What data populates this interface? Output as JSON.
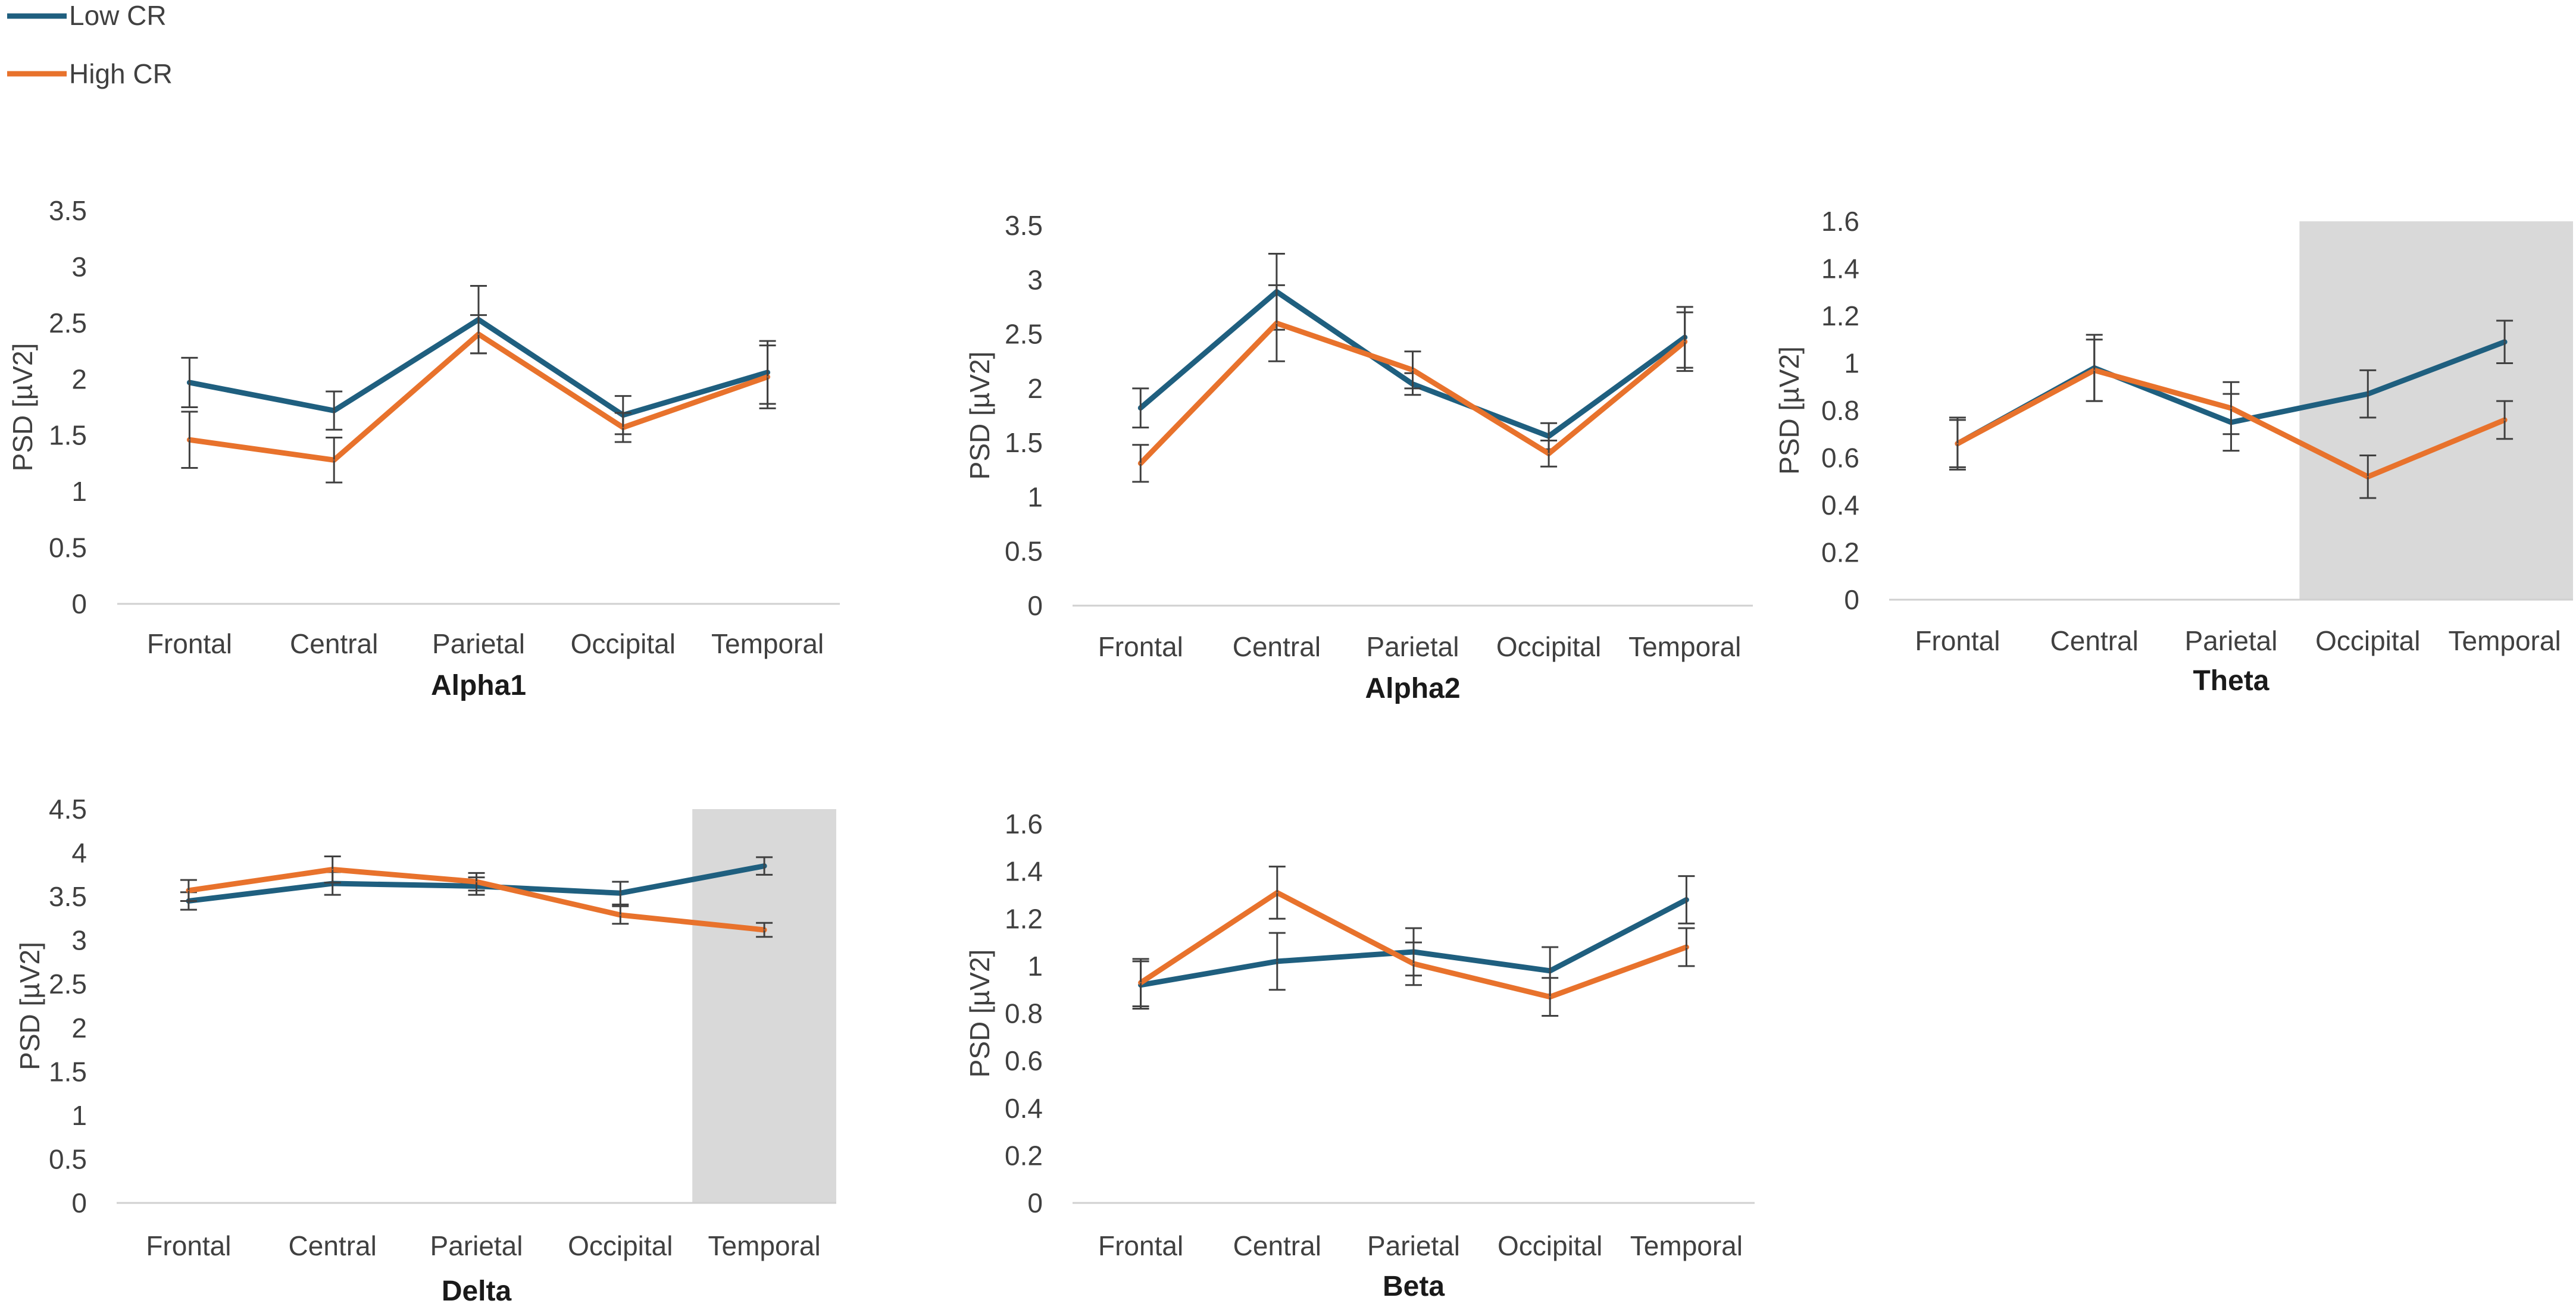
{
  "colors": {
    "low_cr": "#1f5f7f",
    "high_cr": "#e8722c",
    "highlight": "#d9d9d9",
    "axis": "#d0d0d0",
    "text": "#404040",
    "errorbar": "#404040"
  },
  "legend": {
    "items": [
      {
        "label": "Low CR",
        "color": "#1f5f7f"
      },
      {
        "label": "High CR",
        "color": "#e8722c"
      }
    ]
  },
  "chart_data": [
    {
      "type": "line",
      "title": "Alpha1",
      "ylabel": "PSD [µV2]",
      "categories": [
        "Frontal",
        "Central",
        "Parietal",
        "Occipital",
        "Temporal"
      ],
      "ylim": [
        0,
        3.5
      ],
      "yticks": [
        "0",
        "0.5",
        "1",
        "1.5",
        "2",
        "2.5",
        "3",
        "3.5"
      ],
      "highlight": null,
      "series": [
        {
          "name": "Low CR",
          "values": [
            1.97,
            1.72,
            2.53,
            1.68,
            2.06
          ],
          "errors": [
            0.22,
            0.17,
            0.3,
            0.17,
            0.28
          ]
        },
        {
          "name": "High CR",
          "values": [
            1.46,
            1.28,
            2.4,
            1.57,
            2.02
          ],
          "errors": [
            0.25,
            0.2,
            0.17,
            0.13,
            0.28
          ]
        }
      ]
    },
    {
      "type": "line",
      "title": "Alpha2",
      "ylabel": "PSD [µV2]",
      "categories": [
        "Frontal",
        "Central",
        "Parietal",
        "Occipital",
        "Temporal"
      ],
      "ylim": [
        0,
        3.5
      ],
      "yticks": [
        "0",
        "0.5",
        "1",
        "1.5",
        "2",
        "2.5",
        "3",
        "3.5"
      ],
      "highlight": null,
      "series": [
        {
          "name": "Low CR",
          "values": [
            1.82,
            2.89,
            2.04,
            1.56,
            2.47
          ],
          "errors": [
            0.18,
            0.35,
            0.1,
            0.12,
            0.28
          ]
        },
        {
          "name": "High CR",
          "values": [
            1.31,
            2.6,
            2.17,
            1.4,
            2.43
          ],
          "errors": [
            0.17,
            0.35,
            0.17,
            0.12,
            0.27
          ]
        }
      ]
    },
    {
      "type": "line",
      "title": "Theta",
      "ylabel": "PSD [µV2]",
      "categories": [
        "Frontal",
        "Central",
        "Parietal",
        "Occipital",
        "Temporal"
      ],
      "ylim": [
        0,
        1.6
      ],
      "yticks": [
        "0",
        "0.2",
        "0.4",
        "0.6",
        "0.8",
        "1",
        "1.2",
        "1.4",
        "1.6"
      ],
      "highlight": [
        "Occipital",
        "Temporal"
      ],
      "series": [
        {
          "name": "Low CR",
          "values": [
            0.66,
            0.98,
            0.75,
            0.87,
            1.09
          ],
          "errors": [
            0.11,
            0.14,
            0.12,
            0.1,
            0.09
          ]
        },
        {
          "name": "High CR",
          "values": [
            0.66,
            0.97,
            0.81,
            0.52,
            0.76
          ],
          "errors": [
            0.1,
            0.13,
            0.11,
            0.09,
            0.08
          ]
        }
      ]
    },
    {
      "type": "line",
      "title": "Delta",
      "ylabel": "PSD [µV2]",
      "categories": [
        "Frontal",
        "Central",
        "Parietal",
        "Occipital",
        "Temporal"
      ],
      "ylim": [
        0,
        4.5
      ],
      "yticks": [
        "0",
        "0.5",
        "1",
        "1.5",
        "2",
        "2.5",
        "3",
        "3.5",
        "4",
        "4.5"
      ],
      "highlight": [
        "Temporal"
      ],
      "series": [
        {
          "name": "Low CR",
          "values": [
            3.45,
            3.65,
            3.62,
            3.54,
            3.85
          ],
          "errors": [
            0.1,
            0.13,
            0.1,
            0.13,
            0.1
          ]
        },
        {
          "name": "High CR",
          "values": [
            3.57,
            3.81,
            3.67,
            3.29,
            3.12
          ],
          "errors": [
            0.12,
            0.15,
            0.1,
            0.1,
            0.08
          ]
        }
      ]
    },
    {
      "type": "line",
      "title": "Beta",
      "ylabel": "PSD [µV2]",
      "categories": [
        "Frontal",
        "Central",
        "Parietal",
        "Occipital",
        "Temporal"
      ],
      "ylim": [
        0,
        1.6
      ],
      "yticks": [
        "0",
        "0.2",
        "0.4",
        "0.6",
        "0.8",
        "1",
        "1.2",
        "1.4",
        "1.6"
      ],
      "highlight": null,
      "series": [
        {
          "name": "Low CR",
          "values": [
            0.92,
            1.02,
            1.06,
            0.98,
            1.28
          ],
          "errors": [
            0.1,
            0.12,
            0.1,
            0.1,
            0.1
          ]
        },
        {
          "name": "High CR",
          "values": [
            0.93,
            1.31,
            1.01,
            0.87,
            1.08
          ],
          "errors": [
            0.1,
            0.11,
            0.09,
            0.08,
            0.08
          ]
        }
      ]
    }
  ]
}
